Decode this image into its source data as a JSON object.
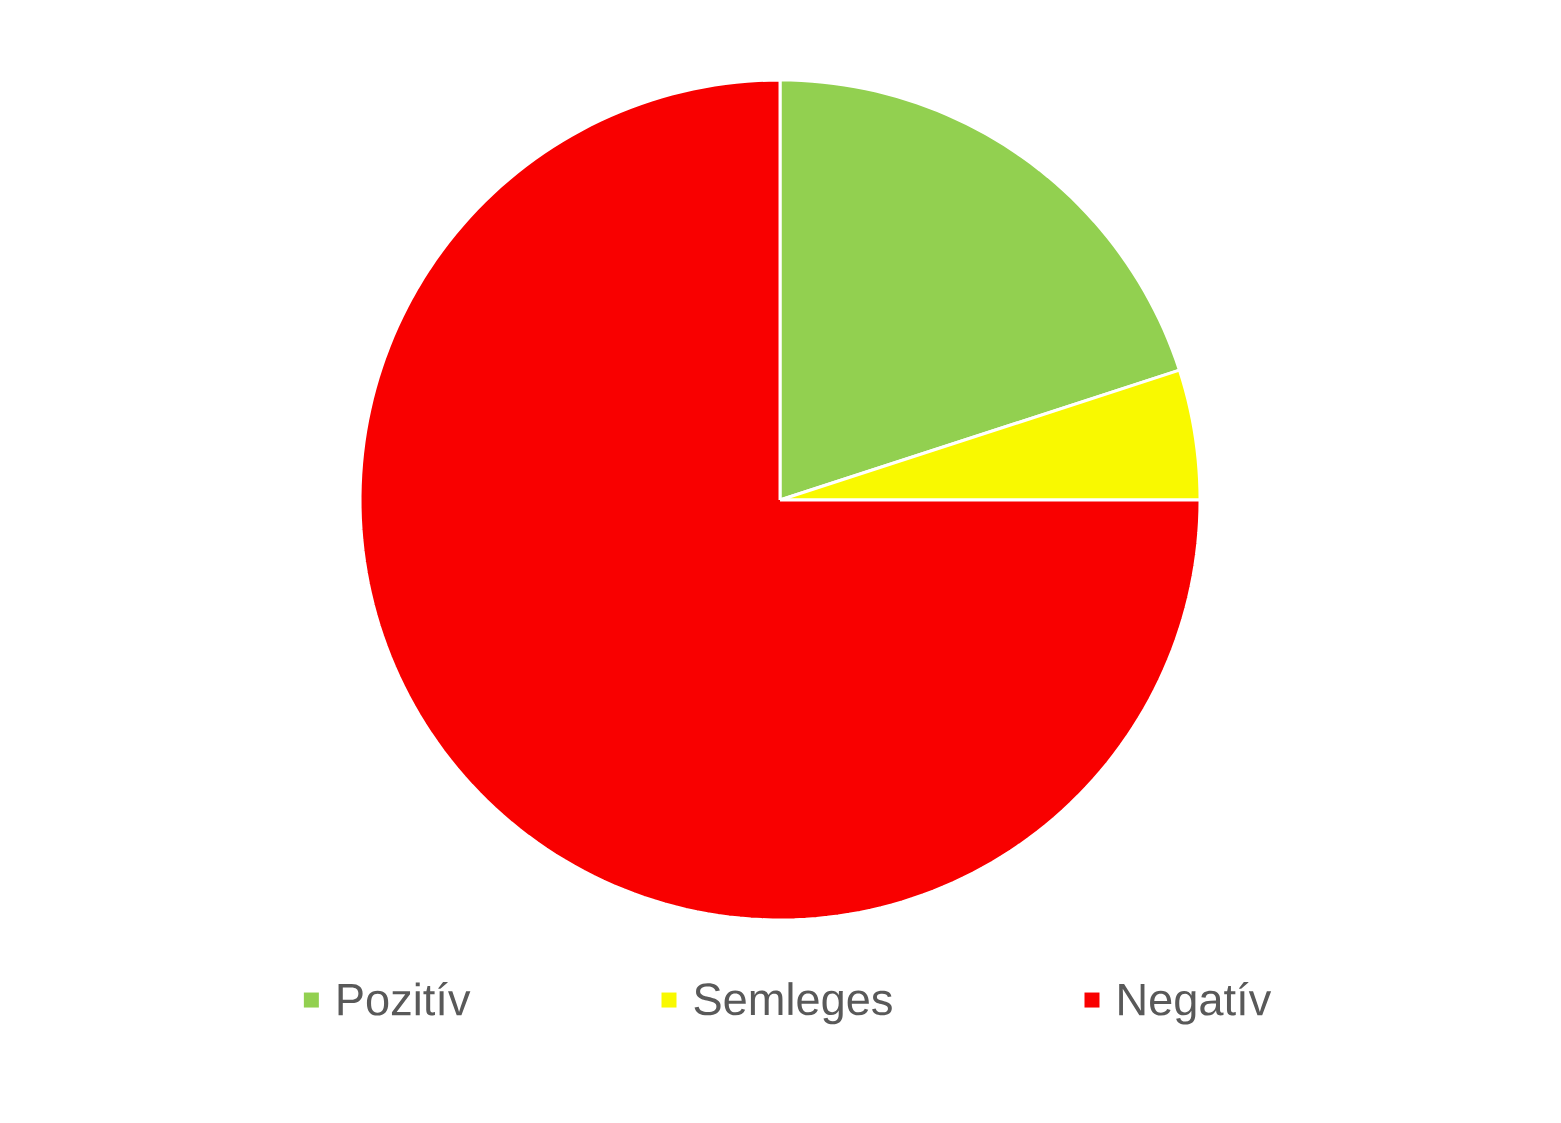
{
  "chart_data": {
    "type": "pie",
    "categories": [
      "Pozitív",
      "Semleges",
      "Negatív"
    ],
    "values": [
      20,
      5,
      75
    ],
    "colors": [
      "#92d050",
      "#f9f900",
      "#f90000"
    ],
    "legend": "bottom"
  }
}
